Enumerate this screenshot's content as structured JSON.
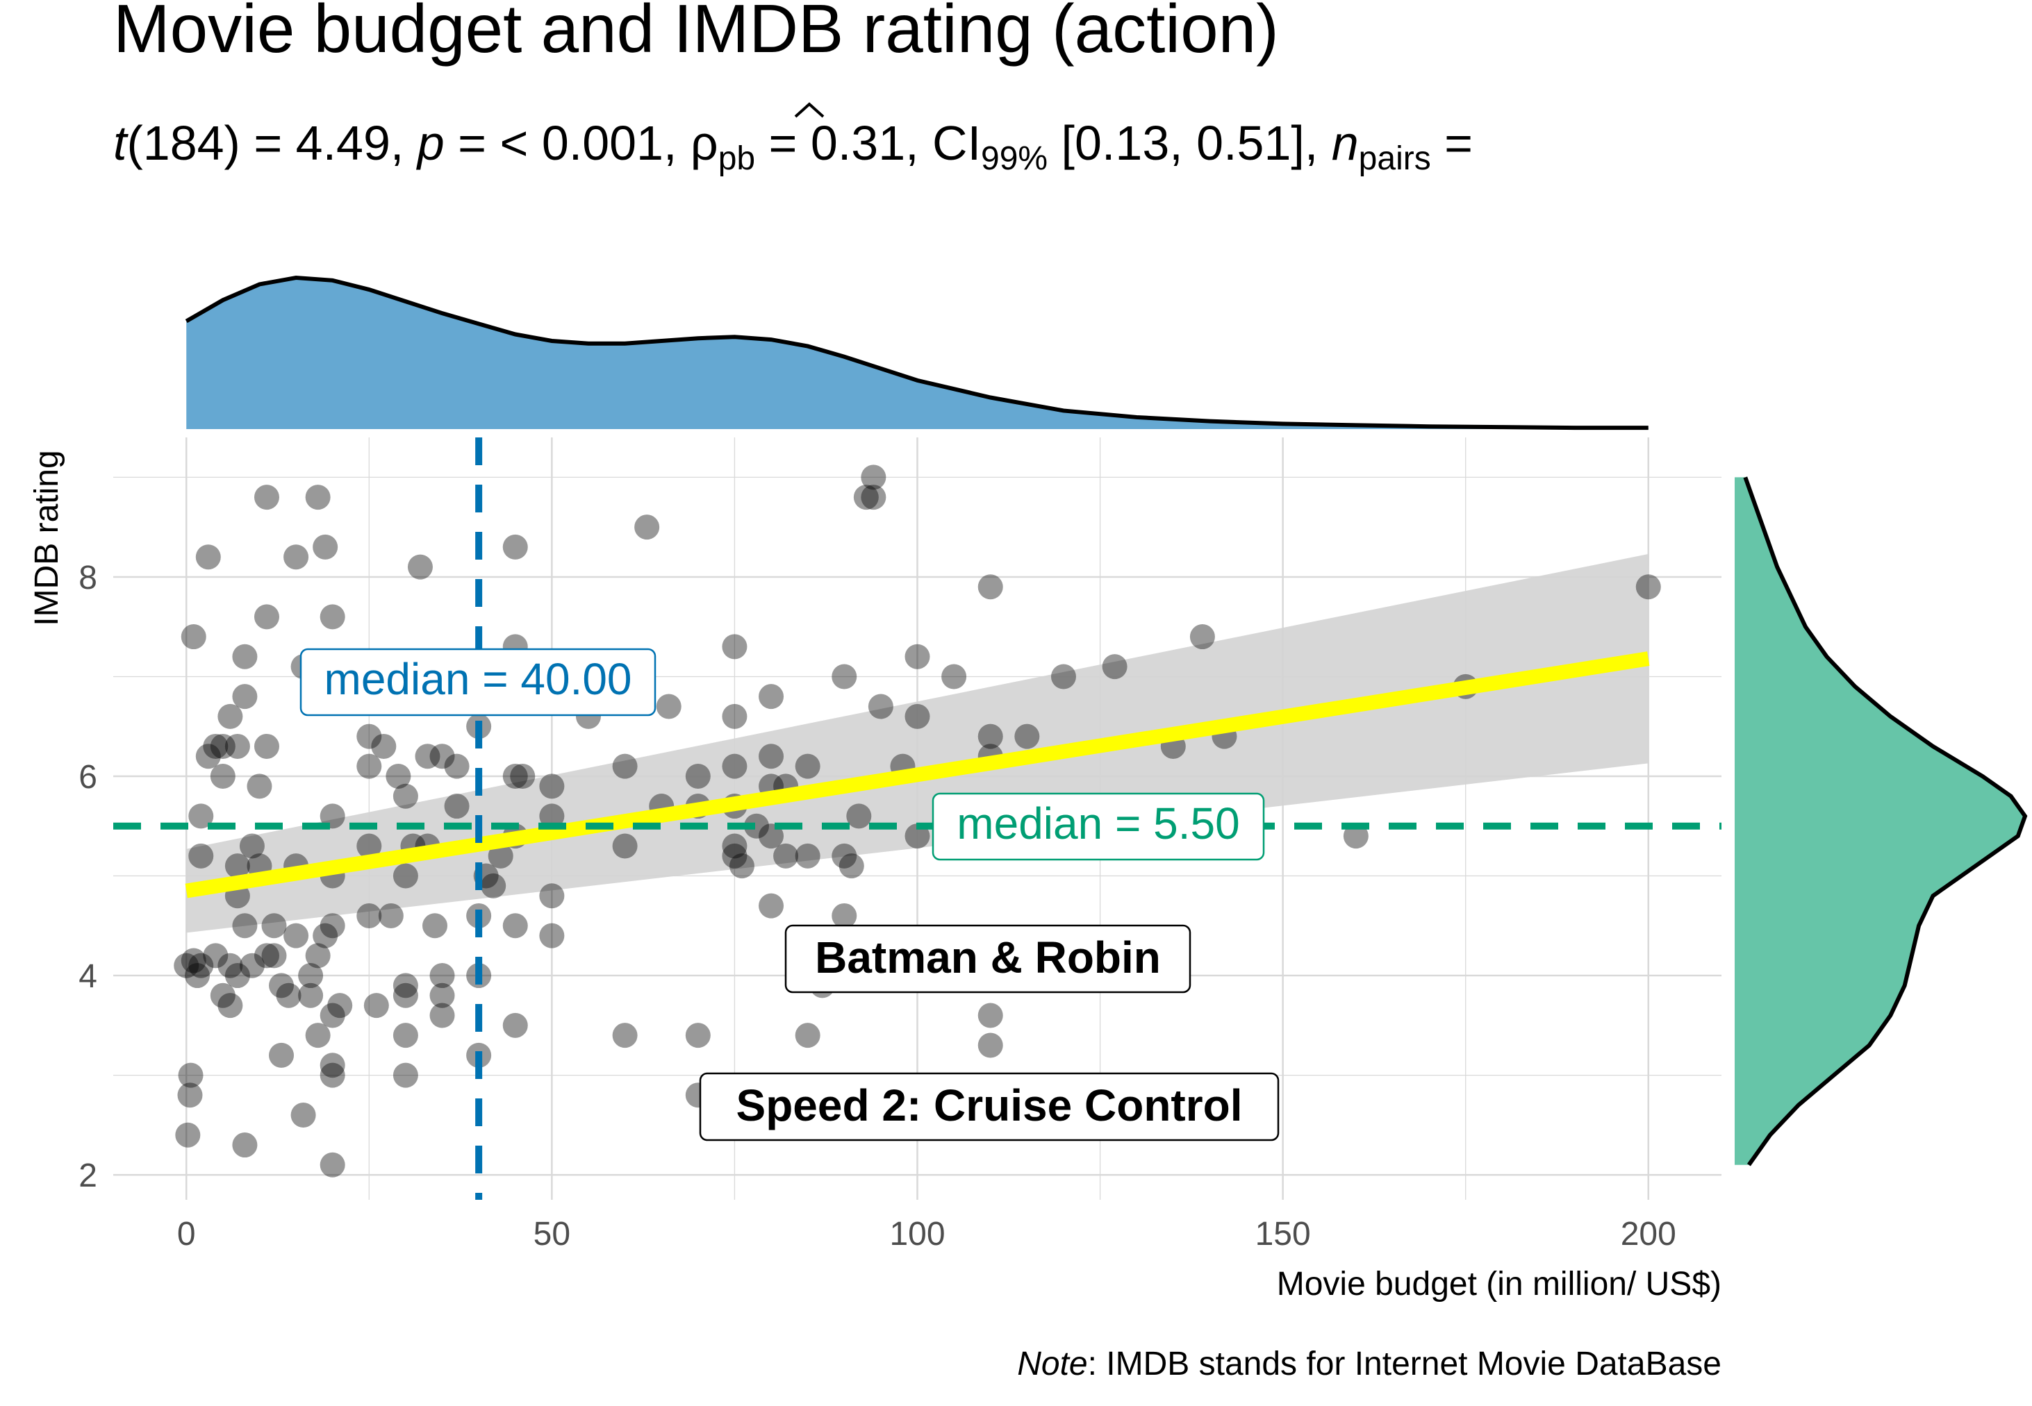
{
  "chart_data": {
    "type": "scatter",
    "title": "Movie budget and IMDB rating (action)",
    "subtitle": {
      "t_label": "t",
      "t_value": "(184) = 4.49, ",
      "p_label": "p",
      "p_value": " = < 0.001, ",
      "rho_label": "ρ",
      "rho_sub": "pb",
      "rho_value": " = 0.31, CI",
      "ci_sub": "99%",
      "ci_value": " [0.13, 0.51], ",
      "n_label": "n",
      "n_sub": "pairs",
      "n_value": " ="
    },
    "xlabel": "Movie budget (in million/ US$)",
    "ylabel": "IMDB rating",
    "caption_italic": "Note",
    "caption_rest": ": IMDB stands for Internet Movie DataBase",
    "xlim": [
      -10,
      210
    ],
    "ylim": [
      1.75,
      9.4
    ],
    "x_ticks": [
      0,
      50,
      100,
      150,
      200
    ],
    "y_ticks": [
      2,
      4,
      6,
      8
    ],
    "grid": true,
    "points": [
      {
        "x": 0,
        "y": 4.1
      },
      {
        "x": 0.5,
        "y": 2.8
      },
      {
        "x": 0.2,
        "y": 2.4
      },
      {
        "x": 0.6,
        "y": 3.0
      },
      {
        "x": 1,
        "y": 4.15
      },
      {
        "x": 1.5,
        "y": 4.0
      },
      {
        "x": 2,
        "y": 4.1
      },
      {
        "x": 1,
        "y": 7.4
      },
      {
        "x": 2,
        "y": 5.6
      },
      {
        "x": 2,
        "y": 5.2
      },
      {
        "x": 3,
        "y": 8.2
      },
      {
        "x": 3,
        "y": 6.2
      },
      {
        "x": 4,
        "y": 4.2
      },
      {
        "x": 5,
        "y": 3.8
      },
      {
        "x": 5,
        "y": 6.0
      },
      {
        "x": 4,
        "y": 6.3
      },
      {
        "x": 5,
        "y": 6.3
      },
      {
        "x": 6,
        "y": 6.6
      },
      {
        "x": 6,
        "y": 4.1
      },
      {
        "x": 7,
        "y": 6.3
      },
      {
        "x": 6,
        "y": 3.7
      },
      {
        "x": 7,
        "y": 4.8
      },
      {
        "x": 7,
        "y": 5.1
      },
      {
        "x": 8,
        "y": 4.5
      },
      {
        "x": 8,
        "y": 2.3
      },
      {
        "x": 7,
        "y": 4.0
      },
      {
        "x": 8,
        "y": 6.8
      },
      {
        "x": 8,
        "y": 7.2
      },
      {
        "x": 9,
        "y": 5.3
      },
      {
        "x": 9,
        "y": 4.1
      },
      {
        "x": 10,
        "y": 5.9
      },
      {
        "x": 10,
        "y": 5.1
      },
      {
        "x": 11,
        "y": 6.3
      },
      {
        "x": 11,
        "y": 4.2
      },
      {
        "x": 12,
        "y": 4.5
      },
      {
        "x": 11,
        "y": 8.8
      },
      {
        "x": 11,
        "y": 7.6
      },
      {
        "x": 12,
        "y": 4.2
      },
      {
        "x": 13,
        "y": 3.9
      },
      {
        "x": 13,
        "y": 3.2
      },
      {
        "x": 14,
        "y": 3.8
      },
      {
        "x": 15,
        "y": 4.4
      },
      {
        "x": 15,
        "y": 5.1
      },
      {
        "x": 15,
        "y": 8.2
      },
      {
        "x": 16,
        "y": 2.6
      },
      {
        "x": 16,
        "y": 7.1
      },
      {
        "x": 17,
        "y": 4.0
      },
      {
        "x": 17,
        "y": 3.8
      },
      {
        "x": 18,
        "y": 4.2
      },
      {
        "x": 18,
        "y": 8.8
      },
      {
        "x": 18,
        "y": 3.4
      },
      {
        "x": 19,
        "y": 8.3
      },
      {
        "x": 19,
        "y": 4.4
      },
      {
        "x": 20,
        "y": 4.5
      },
      {
        "x": 20,
        "y": 5.6
      },
      {
        "x": 20,
        "y": 3.0
      },
      {
        "x": 20,
        "y": 3.1
      },
      {
        "x": 20,
        "y": 7.6
      },
      {
        "x": 20,
        "y": 2.1
      },
      {
        "x": 20,
        "y": 3.6
      },
      {
        "x": 21,
        "y": 3.7
      },
      {
        "x": 20,
        "y": 5.0
      },
      {
        "x": 25,
        "y": 6.4
      },
      {
        "x": 25,
        "y": 6.1
      },
      {
        "x": 25,
        "y": 5.3
      },
      {
        "x": 25,
        "y": 4.6
      },
      {
        "x": 26,
        "y": 3.7
      },
      {
        "x": 27,
        "y": 6.3
      },
      {
        "x": 28,
        "y": 4.6
      },
      {
        "x": 29,
        "y": 6.0
      },
      {
        "x": 30,
        "y": 5.8
      },
      {
        "x": 30,
        "y": 3.9
      },
      {
        "x": 30,
        "y": 3.4
      },
      {
        "x": 30,
        "y": 3.0
      },
      {
        "x": 30,
        "y": 5.0
      },
      {
        "x": 30,
        "y": 3.8
      },
      {
        "x": 31,
        "y": 5.3
      },
      {
        "x": 32,
        "y": 8.1
      },
      {
        "x": 33,
        "y": 6.2
      },
      {
        "x": 33,
        "y": 5.3
      },
      {
        "x": 34,
        "y": 4.5
      },
      {
        "x": 35,
        "y": 6.2
      },
      {
        "x": 35,
        "y": 4.0
      },
      {
        "x": 35,
        "y": 3.8
      },
      {
        "x": 35,
        "y": 3.6
      },
      {
        "x": 37,
        "y": 5.7
      },
      {
        "x": 37,
        "y": 6.1
      },
      {
        "x": 40,
        "y": 6.5
      },
      {
        "x": 40,
        "y": 4.6
      },
      {
        "x": 40,
        "y": 4.0
      },
      {
        "x": 40,
        "y": 3.2
      },
      {
        "x": 41,
        "y": 5.0
      },
      {
        "x": 42,
        "y": 4.9
      },
      {
        "x": 43,
        "y": 5.2
      },
      {
        "x": 45,
        "y": 7.3
      },
      {
        "x": 45,
        "y": 8.3
      },
      {
        "x": 45,
        "y": 6.0
      },
      {
        "x": 45,
        "y": 5.4
      },
      {
        "x": 45,
        "y": 4.5
      },
      {
        "x": 45,
        "y": 3.5
      },
      {
        "x": 46,
        "y": 6.0
      },
      {
        "x": 50,
        "y": 5.9
      },
      {
        "x": 50,
        "y": 5.6
      },
      {
        "x": 50,
        "y": 4.8
      },
      {
        "x": 50,
        "y": 4.4
      },
      {
        "x": 55,
        "y": 6.6
      },
      {
        "x": 60,
        "y": 6.1
      },
      {
        "x": 60,
        "y": 5.3
      },
      {
        "x": 60,
        "y": 3.4
      },
      {
        "x": 63,
        "y": 8.5
      },
      {
        "x": 65,
        "y": 5.7
      },
      {
        "x": 66,
        "y": 6.7
      },
      {
        "x": 70,
        "y": 6.0
      },
      {
        "x": 70,
        "y": 5.7
      },
      {
        "x": 70,
        "y": 3.4
      },
      {
        "x": 70,
        "y": 2.8
      },
      {
        "x": 73,
        "y": 2.6
      },
      {
        "x": 75,
        "y": 7.3
      },
      {
        "x": 75,
        "y": 6.6
      },
      {
        "x": 75,
        "y": 6.1
      },
      {
        "x": 75,
        "y": 5.7
      },
      {
        "x": 75,
        "y": 5.3
      },
      {
        "x": 75,
        "y": 5.2
      },
      {
        "x": 76,
        "y": 5.1
      },
      {
        "x": 78,
        "y": 5.5
      },
      {
        "x": 80,
        "y": 6.8
      },
      {
        "x": 80,
        "y": 6.2
      },
      {
        "x": 80,
        "y": 5.9
      },
      {
        "x": 80,
        "y": 5.4
      },
      {
        "x": 80,
        "y": 4.7
      },
      {
        "x": 82,
        "y": 5.2
      },
      {
        "x": 82,
        "y": 5.9
      },
      {
        "x": 85,
        "y": 6.1
      },
      {
        "x": 85,
        "y": 5.2
      },
      {
        "x": 85,
        "y": 3.4
      },
      {
        "x": 87,
        "y": 3.9
      },
      {
        "x": 90,
        "y": 7.0
      },
      {
        "x": 90,
        "y": 5.2
      },
      {
        "x": 90,
        "y": 4.6
      },
      {
        "x": 91,
        "y": 5.1
      },
      {
        "x": 92,
        "y": 5.6
      },
      {
        "x": 93,
        "y": 8.8
      },
      {
        "x": 94,
        "y": 9.0
      },
      {
        "x": 94,
        "y": 8.8
      },
      {
        "x": 95,
        "y": 6.7
      },
      {
        "x": 98,
        "y": 6.1
      },
      {
        "x": 100,
        "y": 7.2
      },
      {
        "x": 100,
        "y": 6.6
      },
      {
        "x": 100,
        "y": 5.4
      },
      {
        "x": 105,
        "y": 7.0
      },
      {
        "x": 110,
        "y": 7.9
      },
      {
        "x": 110,
        "y": 6.4
      },
      {
        "x": 110,
        "y": 6.2
      },
      {
        "x": 110,
        "y": 3.6
      },
      {
        "x": 110,
        "y": 3.3
      },
      {
        "x": 115,
        "y": 6.4
      },
      {
        "x": 120,
        "y": 7.0
      },
      {
        "x": 127,
        "y": 7.1
      },
      {
        "x": 135,
        "y": 6.3
      },
      {
        "x": 139,
        "y": 7.4
      },
      {
        "x": 142,
        "y": 6.4
      },
      {
        "x": 160,
        "y": 5.4
      },
      {
        "x": 175,
        "y": 6.9
      },
      {
        "x": 200,
        "y": 7.9
      }
    ],
    "fit_line": {
      "x": [
        0,
        200
      ],
      "y": [
        4.85,
        7.18
      ]
    },
    "ci_band": {
      "x": [
        0,
        200
      ],
      "upper": [
        5.27,
        8.23
      ],
      "lower": [
        4.43,
        6.13
      ]
    },
    "x_median": {
      "value": 40,
      "label": "median = 40.00"
    },
    "y_median": {
      "value": 5.5,
      "label": "median = 5.50"
    },
    "labeled_points": [
      {
        "label": "Batman & Robin",
        "x": 87,
        "y": 3.9
      },
      {
        "label": "Speed 2: Cruise Control",
        "x": 73,
        "y": 2.6
      }
    ],
    "x_density_curve": {
      "x": [
        0,
        5,
        10,
        15,
        20,
        25,
        30,
        35,
        40,
        45,
        50,
        55,
        60,
        65,
        70,
        75,
        80,
        85,
        90,
        95,
        100,
        110,
        120,
        130,
        140,
        150,
        160,
        170,
        180,
        190,
        200
      ],
      "y": [
        0.0082,
        0.0098,
        0.011,
        0.0115,
        0.0113,
        0.0106,
        0.0097,
        0.0088,
        0.008,
        0.0072,
        0.0067,
        0.0065,
        0.0065,
        0.0067,
        0.0069,
        0.007,
        0.0068,
        0.0063,
        0.0055,
        0.0046,
        0.0037,
        0.0024,
        0.0014,
        0.0009,
        0.0006,
        0.0004,
        0.0003,
        0.0002,
        0.00015,
        0.0001,
        0.0001
      ]
    },
    "y_density_curve": {
      "y": [
        2.1,
        2.4,
        2.7,
        3.0,
        3.3,
        3.6,
        3.9,
        4.2,
        4.5,
        4.8,
        5.1,
        5.4,
        5.6,
        5.8,
        6.0,
        6.3,
        6.6,
        6.9,
        7.2,
        7.5,
        7.8,
        8.1,
        8.4,
        8.7,
        9.0
      ],
      "density": [
        0.02,
        0.05,
        0.09,
        0.14,
        0.19,
        0.22,
        0.24,
        0.25,
        0.26,
        0.28,
        0.34,
        0.4,
        0.41,
        0.39,
        0.35,
        0.28,
        0.22,
        0.17,
        0.13,
        0.1,
        0.08,
        0.06,
        0.045,
        0.03,
        0.015
      ]
    },
    "colors": {
      "points": "#000000",
      "fit_line": "#FFFF00",
      "ci_band": "#D3D3D3",
      "x_median": "#0072B2",
      "y_median": "#009E73",
      "x_density_fill": "#65A8D2",
      "y_density_fill": "#66C5A8",
      "grid": "#D9D9D9"
    }
  }
}
